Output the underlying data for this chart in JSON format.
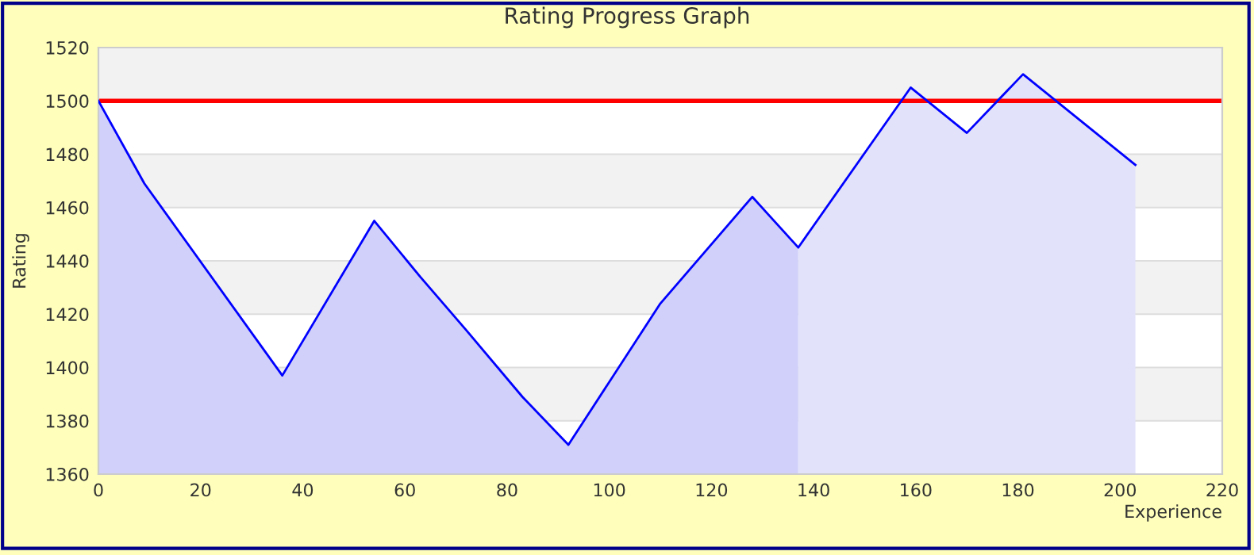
{
  "chart_data": {
    "type": "area",
    "title": "Rating Progress Graph",
    "xlabel": "Experience",
    "ylabel": "Rating",
    "xlim": [
      0,
      220
    ],
    "xticks": [
      0,
      20,
      40,
      60,
      80,
      100,
      120,
      140,
      160,
      180,
      200,
      220
    ],
    "ylim": [
      1360,
      1520
    ],
    "yticks": [
      1360,
      1380,
      1400,
      1420,
      1440,
      1460,
      1480,
      1500,
      1520
    ],
    "grid": "y",
    "legend": false,
    "ref_lines": [
      {
        "axis": "y",
        "value": 1500,
        "color": "#ff0000"
      }
    ],
    "series": [
      {
        "color": "#d0d0fa",
        "x": [
          0,
          9,
          36,
          54,
          63,
          72,
          83,
          92,
          110,
          128,
          137
        ],
        "values": [
          1500,
          1469,
          1397,
          1455,
          1434,
          1414,
          1389,
          1371,
          1424,
          1464,
          1445
        ]
      },
      {
        "color": "#e2e2fa",
        "x": [
          137,
          159,
          170,
          181,
          203
        ],
        "values": [
          1445,
          1505,
          1488,
          1510,
          1476
        ]
      },
      {
        "type": "line",
        "color": "#0000ff",
        "x": [
          0,
          9,
          36,
          54,
          63,
          72,
          83,
          92,
          110,
          128,
          137,
          159,
          170,
          181,
          203
        ],
        "values": [
          1500,
          1469,
          1397,
          1455,
          1434,
          1414,
          1389,
          1371,
          1424,
          1464,
          1445,
          1505,
          1488,
          1510,
          1476
        ]
      }
    ]
  }
}
